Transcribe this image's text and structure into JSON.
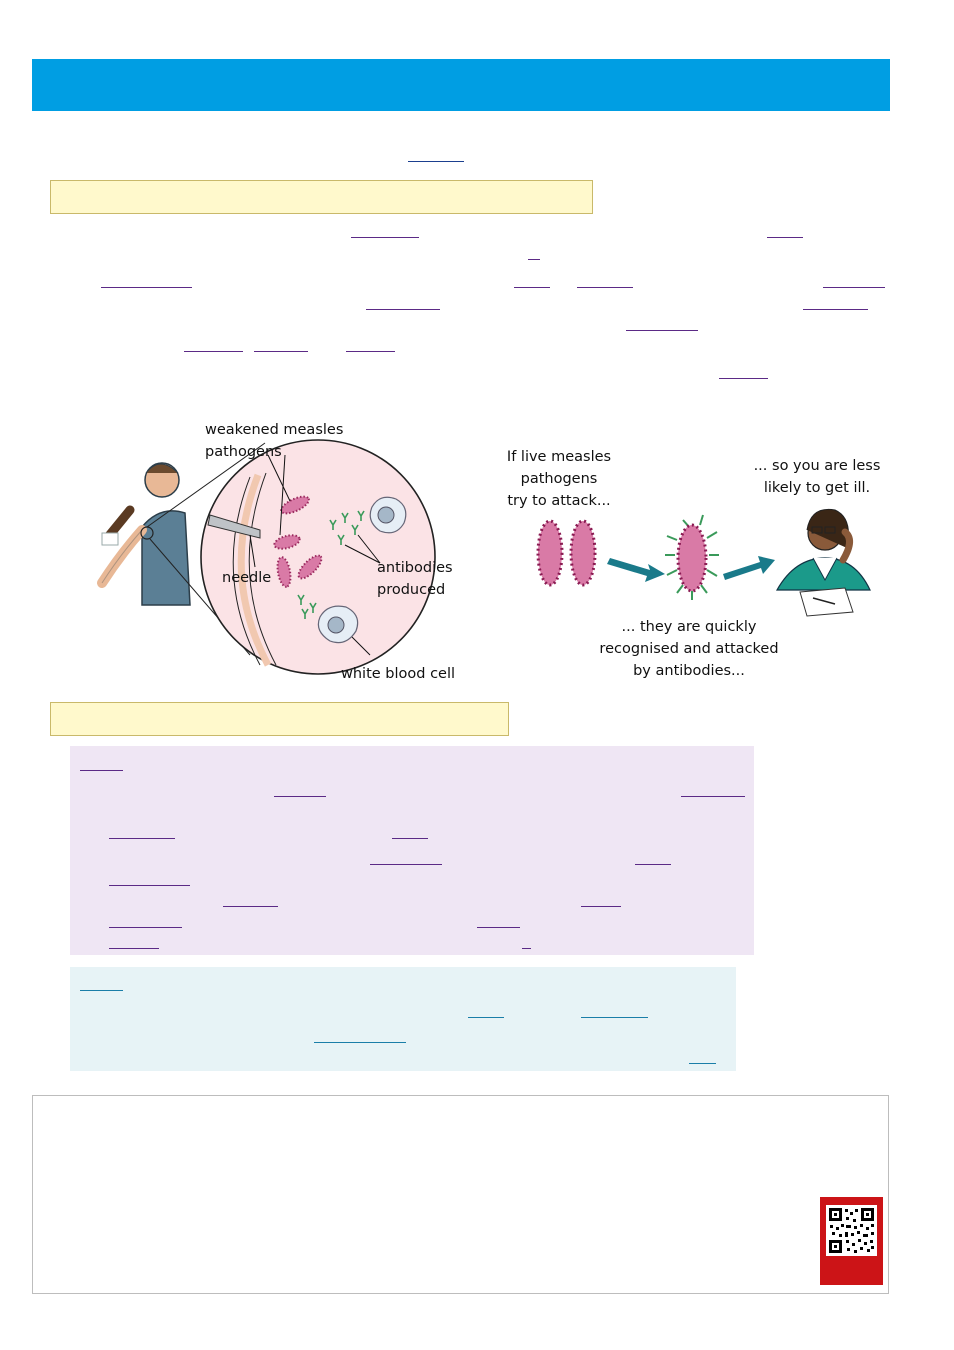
{
  "diagram": {
    "labels": {
      "weakened": "weakened measles",
      "pathogens": "pathogens",
      "needle": "needle",
      "antibodies": "antibodies",
      "produced": "produced",
      "white_blood_cell": "white blood cell",
      "if_live_1": "If live measles",
      "if_live_2": "pathogens",
      "if_live_3": "try to attack...",
      "so_you_1": "... so you are less",
      "so_you_2": "likely to get ill.",
      "quickly_1": "... they are quickly",
      "quickly_2": "recognised and attacked",
      "quickly_3": "by antibodies..."
    }
  },
  "colors": {
    "header": "#009ee3",
    "callout_yellow": "#fff9cc",
    "purple_panel": "#efe6f4",
    "blue_panel": "#e7f3f6",
    "qr_tile": "#cc1417",
    "pathogen": "#c2457f",
    "antibody": "#3a9a5a",
    "arrow": "#1a7a8a"
  }
}
